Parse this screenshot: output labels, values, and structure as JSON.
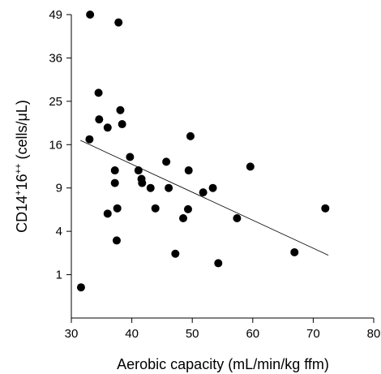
{
  "chart_data": {
    "type": "scatter",
    "xlabel": "Aerobic capacity (mL/min/kg ffm)",
    "ylabel_main": "CD14",
    "ylabel_sup1": "+",
    "ylabel_mid": "16",
    "ylabel_sup2": "++",
    "ylabel_end": " (cells/μL)",
    "xlim": [
      30,
      80
    ],
    "ylim": [
      0,
      49
    ],
    "y_scale": "sqrt",
    "x_ticks": [
      30,
      40,
      50,
      60,
      70,
      80
    ],
    "y_ticks": [
      1,
      4,
      9,
      16,
      25,
      36,
      49
    ],
    "grid": false,
    "points": [
      {
        "x": 31.6,
        "y": 0.5
      },
      {
        "x": 33.0,
        "y": 17.0
      },
      {
        "x": 33.1,
        "y": 49.0
      },
      {
        "x": 34.5,
        "y": 27.0
      },
      {
        "x": 34.6,
        "y": 21.0
      },
      {
        "x": 36.0,
        "y": 19.3
      },
      {
        "x": 36.0,
        "y": 5.8
      },
      {
        "x": 37.2,
        "y": 11.6
      },
      {
        "x": 37.2,
        "y": 9.7
      },
      {
        "x": 37.5,
        "y": 3.2
      },
      {
        "x": 37.6,
        "y": 6.4
      },
      {
        "x": 37.8,
        "y": 46.5
      },
      {
        "x": 38.1,
        "y": 23.0
      },
      {
        "x": 38.4,
        "y": 20.0
      },
      {
        "x": 39.7,
        "y": 13.8
      },
      {
        "x": 41.1,
        "y": 11.6
      },
      {
        "x": 41.6,
        "y": 10.3
      },
      {
        "x": 41.7,
        "y": 9.7
      },
      {
        "x": 43.1,
        "y": 9.0
      },
      {
        "x": 43.9,
        "y": 6.4
      },
      {
        "x": 45.7,
        "y": 13.0
      },
      {
        "x": 46.1,
        "y": 9.0
      },
      {
        "x": 47.2,
        "y": 2.2
      },
      {
        "x": 48.5,
        "y": 5.3
      },
      {
        "x": 49.3,
        "y": 6.3
      },
      {
        "x": 49.4,
        "y": 11.6
      },
      {
        "x": 49.7,
        "y": 17.6
      },
      {
        "x": 51.8,
        "y": 8.4
      },
      {
        "x": 53.4,
        "y": 9.0
      },
      {
        "x": 54.3,
        "y": 1.6
      },
      {
        "x": 57.4,
        "y": 5.3
      },
      {
        "x": 59.6,
        "y": 12.2
      },
      {
        "x": 66.9,
        "y": 2.3
      },
      {
        "x": 72.0,
        "y": 6.4
      }
    ],
    "trendline": {
      "x": [
        31.5,
        72.5
      ],
      "y": [
        16.8,
        2.1
      ]
    }
  }
}
